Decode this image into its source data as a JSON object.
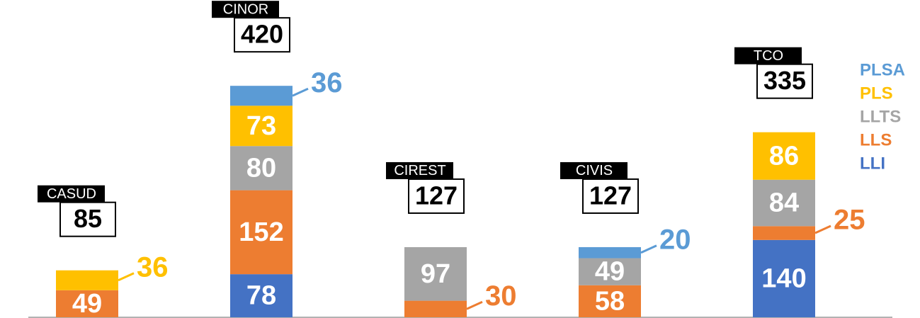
{
  "chart_data": {
    "type": "stacked_bar",
    "categories": [
      "CASUD",
      "CINOR",
      "CIREST",
      "CIVIS",
      "TCO"
    ],
    "totals": [
      85,
      420,
      127,
      127,
      335
    ],
    "series": [
      {
        "name": "LLI",
        "color": "#4472c4",
        "values": [
          null,
          78,
          null,
          null,
          140
        ]
      },
      {
        "name": "LLS",
        "color": "#ed7d31",
        "values": [
          49,
          152,
          30,
          58,
          25
        ]
      },
      {
        "name": "LLTS",
        "color": "#a5a5a5",
        "values": [
          null,
          80,
          97,
          49,
          84
        ]
      },
      {
        "name": "PLS",
        "color": "#ffc000",
        "values": [
          36,
          73,
          null,
          null,
          86
        ]
      },
      {
        "name": "PLSA",
        "color": "#5b9bd5",
        "values": [
          null,
          36,
          null,
          20,
          null
        ]
      }
    ],
    "ylim": [
      0,
      550
    ]
  }
}
